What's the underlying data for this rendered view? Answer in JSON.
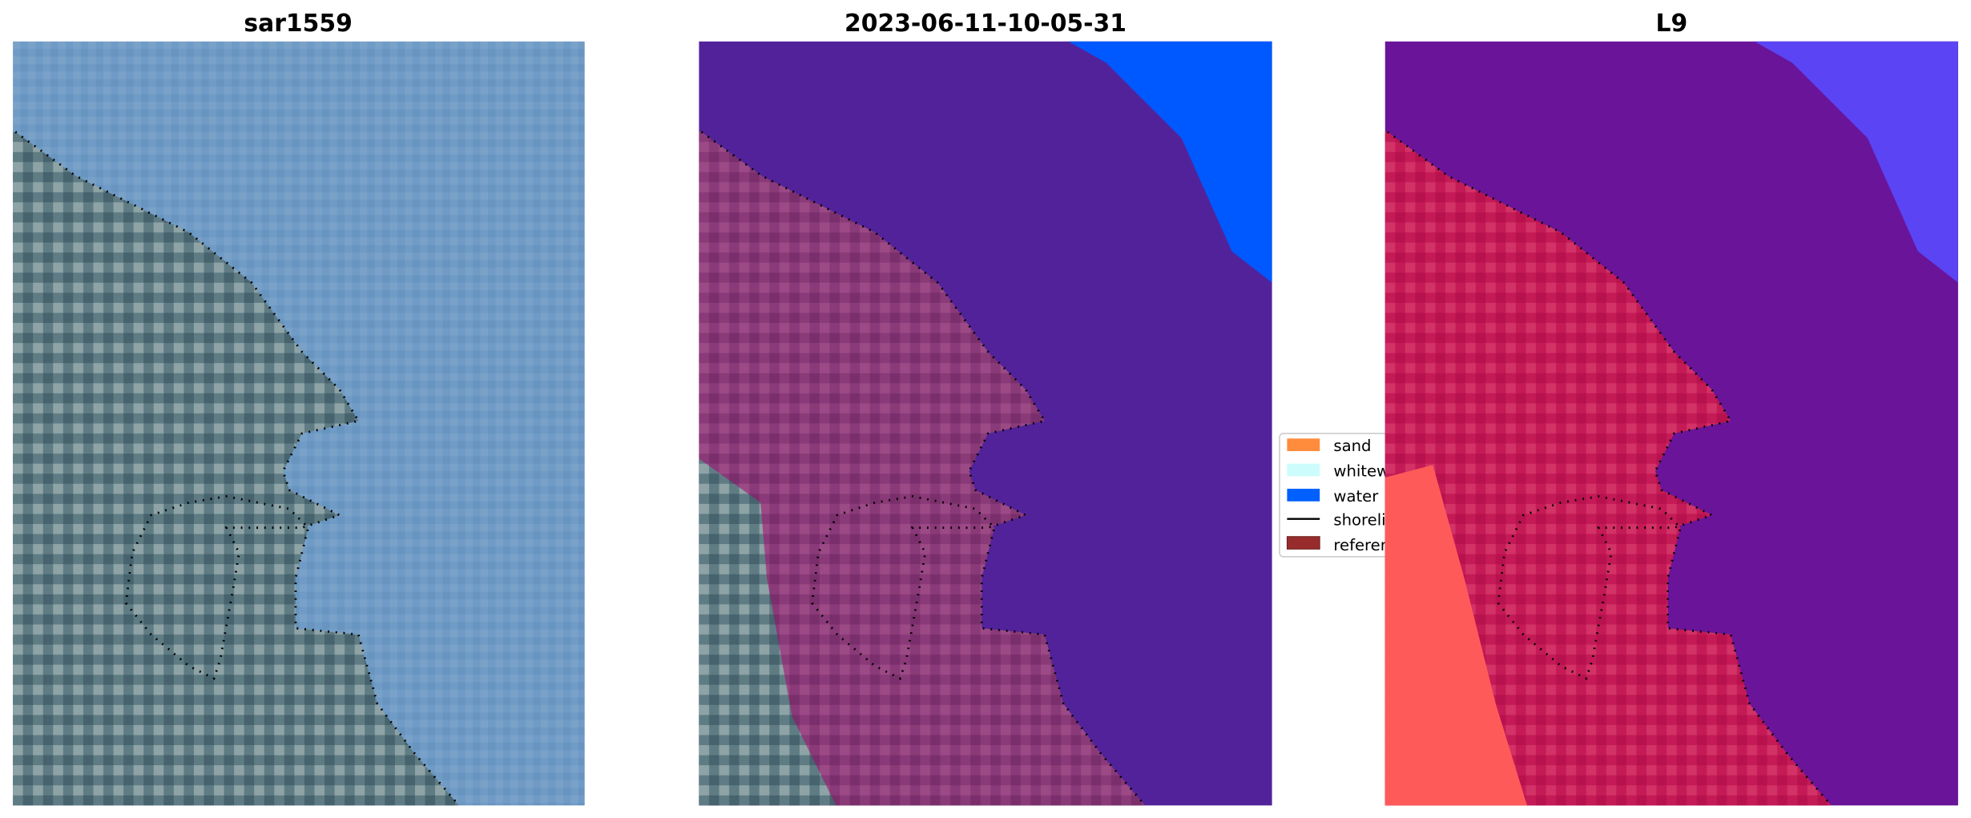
{
  "panels": [
    {
      "title": "sar1559"
    },
    {
      "title": "2023-06-11-10-05-31"
    },
    {
      "title": "L9"
    }
  ],
  "legend": {
    "items": [
      {
        "label": "sand",
        "color": "#ff8c3c"
      },
      {
        "label": "whitewater",
        "color": "#ccfcfc"
      },
      {
        "label": "water",
        "color": "#0060ff"
      },
      {
        "label": "shoreline",
        "color": "#000000"
      },
      {
        "label": "reference",
        "color": "#982c2c"
      }
    ]
  },
  "colors": {
    "sar_water": "#6f9bc6",
    "sar_land": "#6f8890",
    "classified_water": "#52229a",
    "classified_land": "#8c3a7a",
    "ocean_blue": "#0058ff",
    "l9_water": "#6a1499",
    "l9_land": "#c41a56",
    "l9_bright": "#ff4a4a",
    "l9_ocean": "#5a44f4"
  }
}
